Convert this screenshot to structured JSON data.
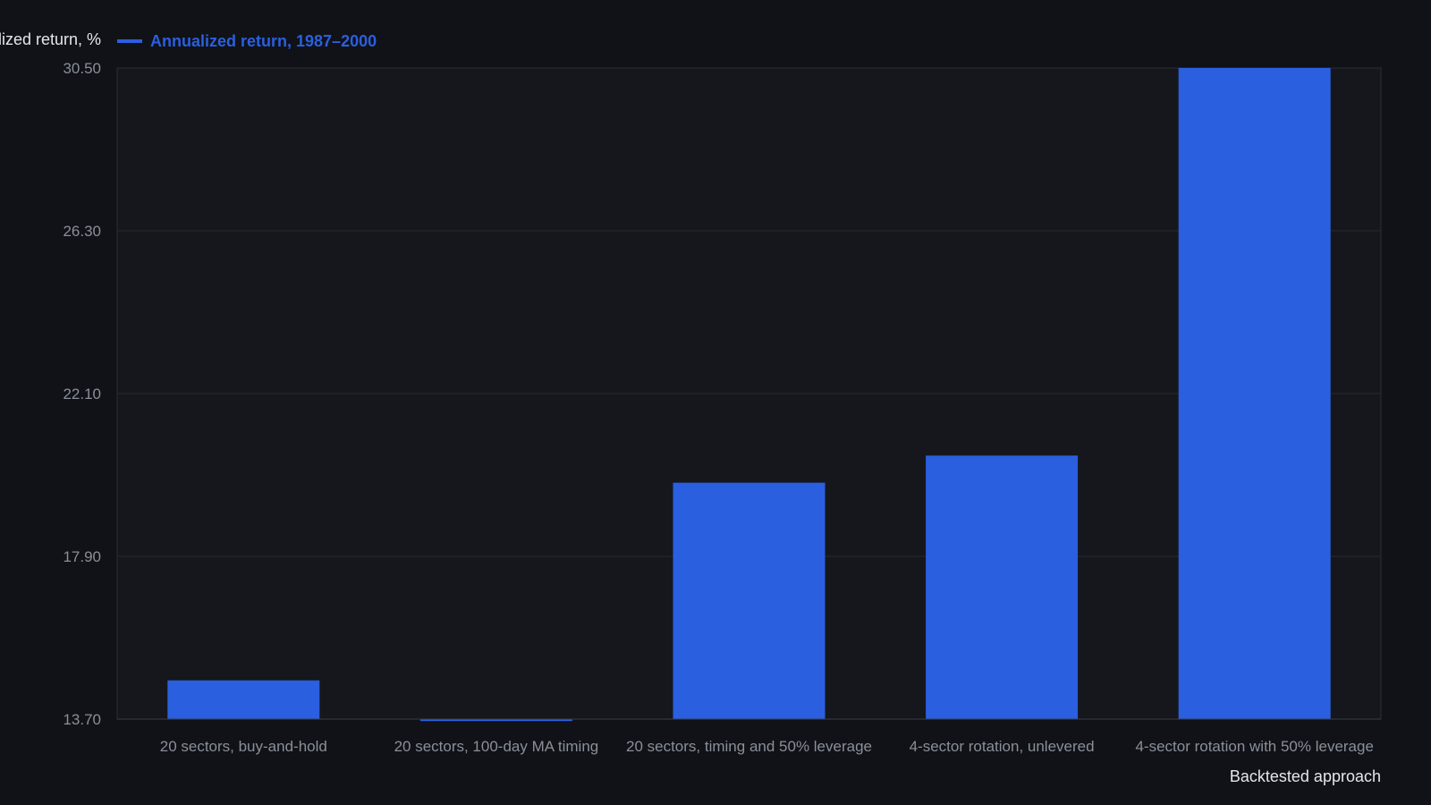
{
  "chart_data": {
    "type": "bar",
    "ylabel": "Annualized return, %",
    "xlabel": "Backtested approach",
    "ylim": [
      13.7,
      30.5
    ],
    "yticks": [
      "13.70",
      "17.90",
      "22.10",
      "26.30",
      "30.50"
    ],
    "grid": true,
    "legend": {
      "position": "top-left"
    },
    "series": [
      {
        "name": "Annualized return, 1987–2000",
        "color": "#2a5fe0",
        "values": [
          14.7,
          13.65,
          19.8,
          20.5,
          30.5
        ]
      }
    ],
    "categories": [
      "20 sectors, buy-and-hold",
      "20 sectors, 100-day MA timing",
      "20 sectors, timing and 50% leverage",
      "4-sector rotation, unlevered",
      "4-sector rotation with 50% leverage"
    ]
  }
}
